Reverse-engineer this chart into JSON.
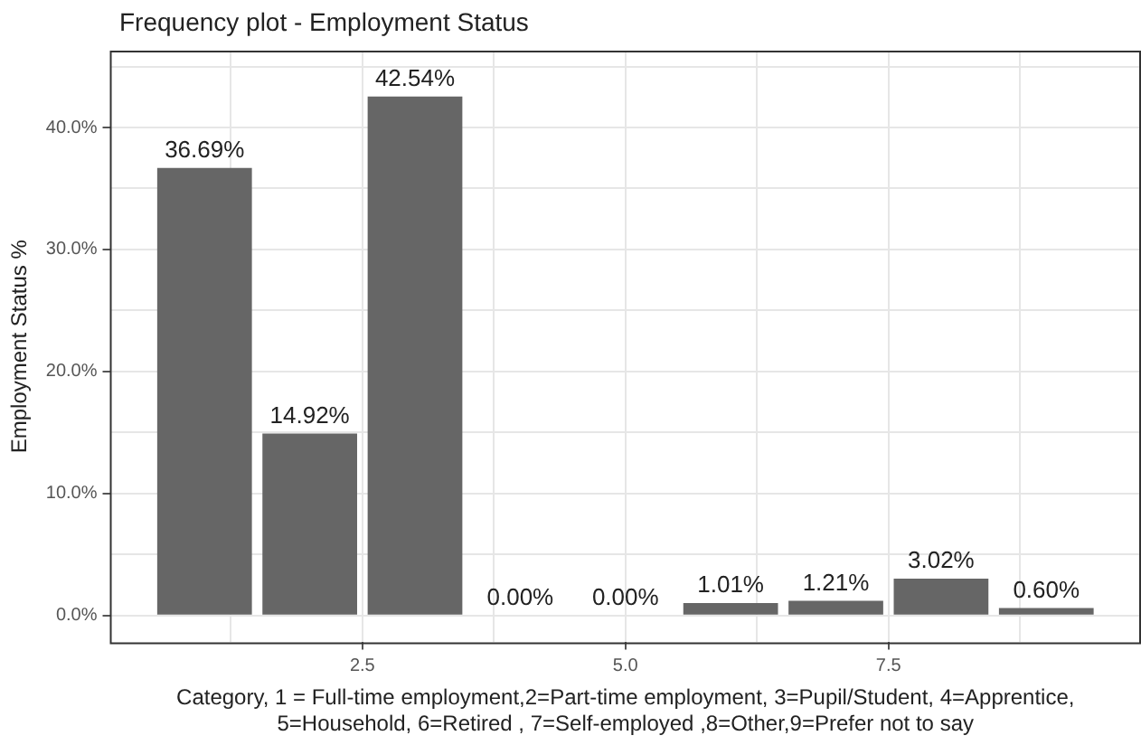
{
  "chart_data": {
    "type": "bar",
    "title": "Frequency plot - Employment Status",
    "xlabel": "Category, 1 = Full-time employment,2=Part-time employment, 3=Pupil/Student, 4=Apprentice,\n5=Household, 6=Retired , 7=Self-employed ,8=Other,9=Prefer not to say",
    "ylabel": "Employment Status %",
    "x": [
      1,
      2,
      3,
      4,
      5,
      6,
      7,
      8,
      9
    ],
    "values": [
      36.69,
      14.92,
      42.54,
      0,
      0,
      1.01,
      1.21,
      3.02,
      0.6
    ],
    "value_labels": [
      "36.69%",
      "14.92%",
      "42.54%",
      "0.00%",
      "0.00%",
      "1.01%",
      "1.21%",
      "3.02%",
      "0.60%"
    ],
    "color": "#666666",
    "xlim": [
      0.1,
      9.9
    ],
    "xticks": [
      {
        "value": 1.25,
        "label": null
      },
      {
        "value": 2.5,
        "label": "2.5"
      },
      {
        "value": 3.75,
        "label": null
      },
      {
        "value": 5,
        "label": "5.0"
      },
      {
        "value": 6.25,
        "label": null
      },
      {
        "value": 7.5,
        "label": "7.5"
      },
      {
        "value": 8.75,
        "label": null
      }
    ],
    "ylim": [
      -2.2,
      46.3
    ],
    "yticks": [
      {
        "value": 0,
        "label": "0.0%"
      },
      {
        "value": 5,
        "label": null
      },
      {
        "value": 10,
        "label": "10.0%"
      },
      {
        "value": 15,
        "label": null
      },
      {
        "value": 20,
        "label": "20.0%"
      },
      {
        "value": 25,
        "label": null
      },
      {
        "value": 30,
        "label": "30.0%"
      },
      {
        "value": 35,
        "label": null
      },
      {
        "value": 40,
        "label": "40.0%"
      },
      {
        "value": 45,
        "label": null
      }
    ],
    "grid": true,
    "legend": false
  }
}
